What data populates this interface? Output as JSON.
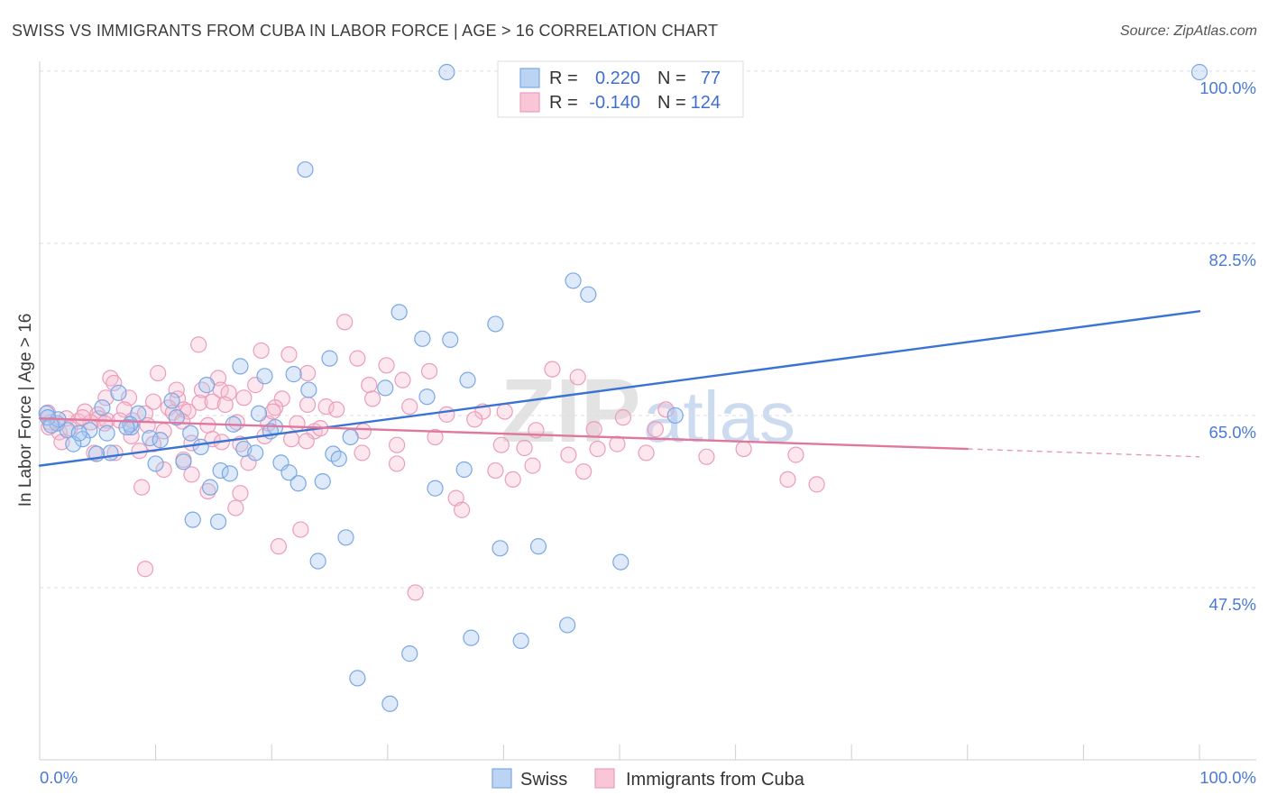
{
  "source": "Source: ZipAtlas.com",
  "watermark": {
    "part1": "ZIP",
    "part2": "atlas"
  },
  "colors": {
    "swiss_marker": "#7aa8e4",
    "swiss_marker_fill": "#a9c8f0",
    "swiss_line": "#3a74d2",
    "cuba_marker": "#eb9dbb",
    "cuba_marker_fill": "#f6bfd3",
    "cuba_line": "#e0789e"
  },
  "chart_data": {
    "type": "scatter",
    "title": "SWISS VS IMMIGRANTS FROM CUBA IN LABOR FORCE | AGE > 16 CORRELATION CHART",
    "ylabel": "In Labor Force | Age > 16",
    "xlim": [
      0,
      100
    ],
    "ylim": [
      30,
      101
    ],
    "x_ticks": [
      10,
      20,
      30,
      40,
      50,
      60,
      70,
      80,
      90,
      100
    ],
    "x_tick_labels": [
      "0.0%",
      "100.0%"
    ],
    "y_ticks": [
      100,
      82.5,
      65,
      47.5
    ],
    "y_tick_labels": [
      "100.0%",
      "82.5%",
      "65.0%",
      "47.5%"
    ],
    "grid": true,
    "legend": {
      "position": "top-center",
      "r_label": "R =",
      "n_label": "N ="
    },
    "series": [
      {
        "name": "Swiss",
        "r": "0.220",
        "n": "77",
        "trend": {
          "start": [
            0,
            59.9
          ],
          "end": [
            100,
            75.6
          ]
        },
        "points": [
          [
            35.1,
            99.9
          ],
          [
            100,
            99.9
          ],
          [
            22.9,
            90.0
          ],
          [
            46.0,
            78.7
          ],
          [
            47.3,
            77.3
          ],
          [
            31.0,
            75.5
          ],
          [
            39.3,
            74.3
          ],
          [
            33.0,
            72.8
          ],
          [
            35.4,
            72.7
          ],
          [
            25.0,
            70.8
          ],
          [
            17.3,
            70.0
          ],
          [
            19.4,
            69.0
          ],
          [
            21.9,
            69.2
          ],
          [
            36.9,
            68.6
          ],
          [
            14.4,
            68.1
          ],
          [
            23.2,
            67.6
          ],
          [
            29.8,
            67.8
          ],
          [
            6.8,
            67.3
          ],
          [
            33.4,
            66.9
          ],
          [
            11.4,
            66.5
          ],
          [
            5.4,
            65.8
          ],
          [
            0.6,
            65.2
          ],
          [
            8.5,
            65.2
          ],
          [
            18.9,
            65.2
          ],
          [
            11.8,
            64.8
          ],
          [
            7.9,
            63.8
          ],
          [
            16.7,
            64.1
          ],
          [
            20.3,
            63.8
          ],
          [
            19.9,
            63.4
          ],
          [
            1.5,
            64.2
          ],
          [
            2.4,
            63.5
          ],
          [
            4.3,
            63.5
          ],
          [
            5.8,
            63.2
          ],
          [
            13.0,
            63.2
          ],
          [
            9.5,
            62.7
          ],
          [
            10.4,
            62.5
          ],
          [
            3.7,
            62.6
          ],
          [
            2.9,
            62.1
          ],
          [
            26.8,
            62.8
          ],
          [
            13.9,
            61.8
          ],
          [
            17.6,
            61.6
          ],
          [
            6.1,
            61.2
          ],
          [
            4.9,
            61.1
          ],
          [
            18.6,
            61.2
          ],
          [
            25.3,
            61.1
          ],
          [
            25.8,
            60.6
          ],
          [
            10.0,
            60.1
          ],
          [
            12.4,
            60.3
          ],
          [
            20.8,
            60.2
          ],
          [
            15.6,
            59.4
          ],
          [
            16.4,
            59.1
          ],
          [
            21.5,
            59.2
          ],
          [
            36.6,
            59.5
          ],
          [
            22.3,
            58.1
          ],
          [
            24.4,
            58.3
          ],
          [
            14.7,
            57.7
          ],
          [
            34.1,
            57.6
          ],
          [
            13.2,
            54.4
          ],
          [
            15.4,
            54.2
          ],
          [
            26.4,
            52.6
          ],
          [
            39.7,
            51.5
          ],
          [
            43.0,
            51.7
          ],
          [
            24.0,
            50.2
          ],
          [
            50.1,
            50.1
          ],
          [
            45.5,
            43.7
          ],
          [
            37.2,
            42.4
          ],
          [
            41.5,
            42.1
          ],
          [
            31.9,
            40.8
          ],
          [
            27.4,
            38.3
          ],
          [
            30.2,
            35.7
          ],
          [
            54.8,
            65.0
          ],
          [
            1.6,
            64.6
          ],
          [
            0.7,
            64.8
          ],
          [
            3.4,
            63.2
          ],
          [
            7.8,
            64.1
          ],
          [
            7.5,
            63.8
          ],
          [
            1.0,
            64.0
          ]
        ]
      },
      {
        "name": "Immigrants from Cuba",
        "r": "-0.140",
        "n": "124",
        "trend": {
          "start": [
            0,
            64.7
          ],
          "end": [
            80,
            61.6
          ],
          "dashed_end": [
            100,
            60.8
          ]
        },
        "points": [
          [
            26.3,
            74.5
          ],
          [
            13.7,
            72.2
          ],
          [
            19.1,
            71.6
          ],
          [
            21.5,
            71.2
          ],
          [
            27.4,
            70.8
          ],
          [
            29.9,
            70.1
          ],
          [
            44.2,
            69.7
          ],
          [
            33.6,
            69.5
          ],
          [
            10.2,
            69.3
          ],
          [
            23.1,
            69.3
          ],
          [
            15.4,
            68.8
          ],
          [
            46.4,
            68.9
          ],
          [
            6.1,
            68.8
          ],
          [
            31.3,
            68.6
          ],
          [
            18.6,
            68.1
          ],
          [
            28.4,
            68.1
          ],
          [
            6.4,
            68.3
          ],
          [
            15.6,
            67.6
          ],
          [
            16.3,
            67.3
          ],
          [
            11.9,
            66.7
          ],
          [
            5.7,
            66.8
          ],
          [
            7.7,
            66.8
          ],
          [
            17.6,
            66.8
          ],
          [
            20.9,
            66.7
          ],
          [
            9.8,
            66.4
          ],
          [
            13.8,
            66.3
          ],
          [
            14.9,
            66.4
          ],
          [
            16.0,
            66.1
          ],
          [
            11.1,
            65.8
          ],
          [
            7.3,
            65.6
          ],
          [
            12.4,
            65.6
          ],
          [
            23.1,
            66.1
          ],
          [
            24.7,
            65.9
          ],
          [
            25.6,
            65.6
          ],
          [
            31.9,
            65.9
          ],
          [
            3.9,
            65.4
          ],
          [
            5.0,
            65.1
          ],
          [
            9.1,
            65.2
          ],
          [
            11.5,
            65.3
          ],
          [
            12.8,
            65.4
          ],
          [
            5.1,
            64.7
          ],
          [
            38.2,
            65.4
          ],
          [
            40.1,
            65.4
          ],
          [
            54.0,
            65.6
          ],
          [
            35.1,
            65.1
          ],
          [
            50.3,
            64.8
          ],
          [
            2.3,
            64.7
          ],
          [
            3.3,
            64.4
          ],
          [
            5.8,
            64.5
          ],
          [
            8.0,
            64.5
          ],
          [
            17.0,
            64.3
          ],
          [
            9.3,
            64.0
          ],
          [
            10.7,
            63.4
          ],
          [
            14.5,
            64.0
          ],
          [
            53.1,
            63.6
          ],
          [
            47.8,
            63.6
          ],
          [
            42.8,
            63.5
          ],
          [
            1.7,
            63.3
          ],
          [
            23.7,
            63.4
          ],
          [
            27.9,
            63.4
          ],
          [
            34.1,
            62.8
          ],
          [
            21.7,
            62.6
          ],
          [
            19.4,
            62.9
          ],
          [
            23.0,
            62.4
          ],
          [
            17.3,
            62.1
          ],
          [
            30.8,
            62.0
          ],
          [
            39.8,
            62.0
          ],
          [
            49.8,
            62.1
          ],
          [
            41.8,
            61.7
          ],
          [
            48.1,
            61.6
          ],
          [
            60.7,
            61.6
          ],
          [
            27.8,
            61.2
          ],
          [
            4.7,
            61.2
          ],
          [
            6.5,
            61.2
          ],
          [
            52.3,
            61.2
          ],
          [
            45.6,
            61.0
          ],
          [
            57.5,
            60.8
          ],
          [
            65.2,
            61.0
          ],
          [
            8.6,
            61.4
          ],
          [
            12.4,
            60.5
          ],
          [
            18.0,
            60.2
          ],
          [
            30.8,
            60.1
          ],
          [
            42.5,
            59.9
          ],
          [
            10.7,
            59.5
          ],
          [
            39.3,
            59.4
          ],
          [
            46.9,
            59.3
          ],
          [
            13.1,
            59.0
          ],
          [
            40.8,
            58.5
          ],
          [
            64.5,
            58.5
          ],
          [
            67.0,
            58.0
          ],
          [
            8.8,
            57.7
          ],
          [
            14.5,
            57.3
          ],
          [
            17.3,
            57.1
          ],
          [
            35.9,
            56.6
          ],
          [
            16.9,
            55.6
          ],
          [
            36.4,
            55.4
          ],
          [
            22.5,
            53.4
          ],
          [
            20.6,
            51.7
          ],
          [
            9.1,
            49.4
          ],
          [
            32.4,
            47.0
          ],
          [
            0.9,
            64.3
          ],
          [
            0.8,
            63.8
          ],
          [
            1.9,
            62.3
          ],
          [
            4.4,
            64.3
          ],
          [
            14.9,
            62.6
          ],
          [
            15.7,
            62.3
          ],
          [
            22.2,
            64.2
          ],
          [
            20.3,
            65.8
          ],
          [
            19.7,
            64.2
          ],
          [
            14.0,
            67.6
          ],
          [
            11.8,
            67.6
          ],
          [
            7.9,
            62.9
          ],
          [
            6.9,
            64.5
          ],
          [
            0.7,
            65.3
          ],
          [
            2.6,
            63.7
          ],
          [
            3.7,
            64.8
          ],
          [
            5.6,
            64.2
          ],
          [
            12.3,
            64.4
          ],
          [
            20.1,
            65.4
          ],
          [
            28.7,
            66.7
          ],
          [
            37.5,
            64.6
          ],
          [
            9.8,
            62.1
          ],
          [
            13.1,
            62.2
          ],
          [
            24.2,
            63.7
          ]
        ]
      }
    ]
  }
}
